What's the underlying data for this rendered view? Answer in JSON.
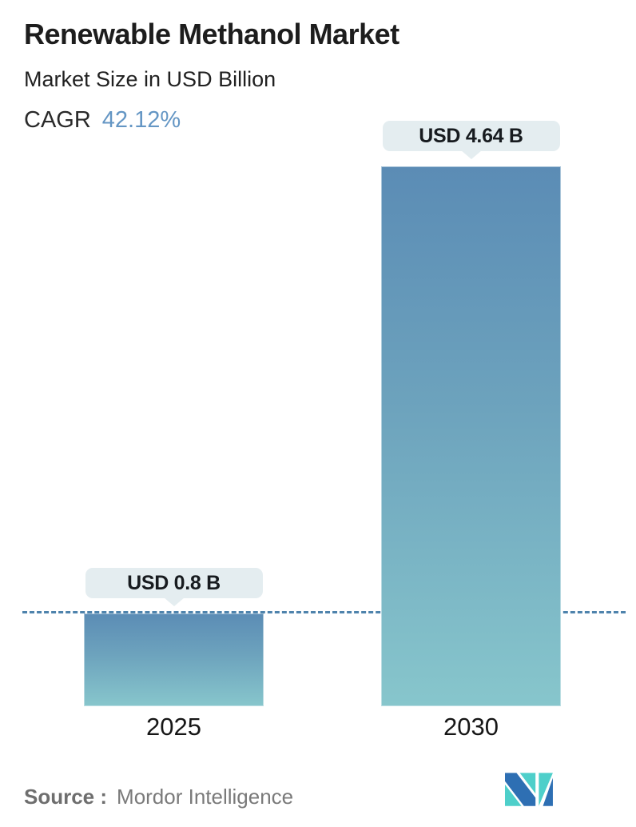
{
  "header": {
    "title": "Renewable Methanol Market",
    "subtitle": "Market Size in USD Billion",
    "cagr_label": "CAGR",
    "cagr_value": "42.12%"
  },
  "chart_data": {
    "type": "bar",
    "title": "Renewable Methanol Market",
    "subtitle": "Market Size in USD Billion",
    "cagr_percent": 42.12,
    "categories": [
      "2025",
      "2030"
    ],
    "values": [
      0.8,
      4.64
    ],
    "value_labels": [
      "USD 0.8 B",
      "USD 4.64 B"
    ],
    "ylim": [
      0,
      4.64
    ],
    "baseline": {
      "value": 0.8,
      "style": "dashed"
    },
    "grid": false,
    "legend": "none"
  },
  "footer": {
    "source_label": "Source :",
    "source_value": "Mordor Intelligence",
    "logo": "mordor-intelligence-logo"
  },
  "colors": {
    "bar_gradient_top": "#5b8cb5",
    "bar_gradient_bottom": "#87c6cc",
    "tooltip_bg": "#e4edf0",
    "dashed_line": "#4e83ac",
    "cagr_value": "#6496c4",
    "title_text": "#1d1d1d",
    "source_text": "#757575",
    "logo_blue": "#2e6fb3",
    "logo_teal": "#4ecfca"
  }
}
